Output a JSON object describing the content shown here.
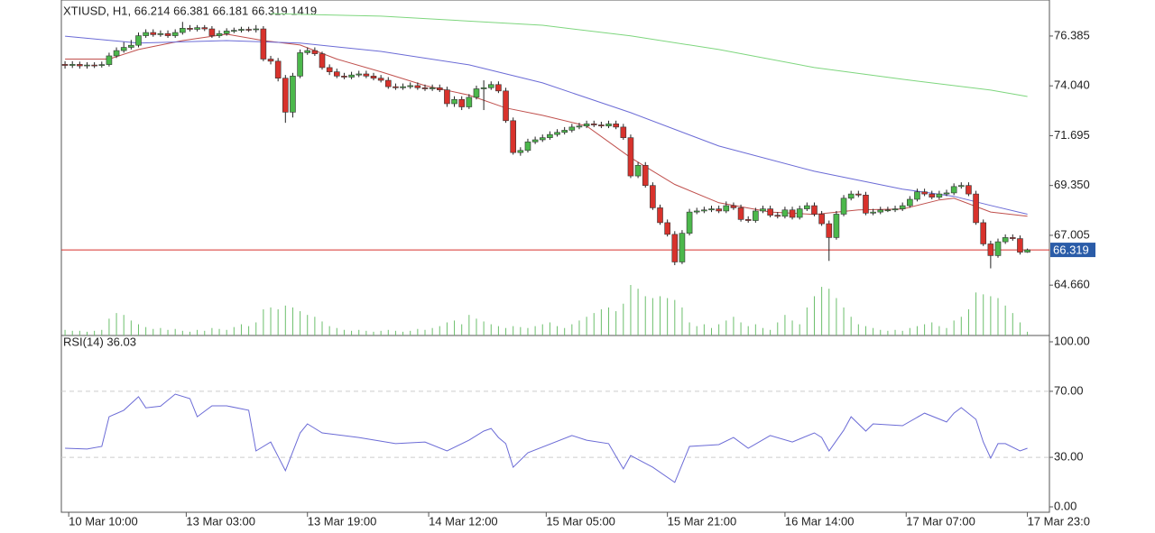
{
  "chart_data": [
    {
      "type": "candlestick",
      "title": "XTIUSD, H1, 66.214 66.381 66.181 66.319 1419",
      "open": [
        75.05,
        75.0,
        75.05,
        74.98,
        75.02,
        75.0,
        75.04,
        75.45,
        75.7,
        75.85,
        75.95,
        76.4,
        76.55,
        76.45,
        76.5,
        76.4,
        76.55,
        76.75,
        76.7,
        76.78,
        76.72,
        76.4,
        76.5,
        76.62,
        76.65,
        76.7,
        76.68,
        76.72,
        75.3,
        75.2,
        74.4,
        72.8,
        74.5,
        75.6,
        75.7,
        75.55,
        74.9,
        74.7,
        74.5,
        74.45,
        74.55,
        74.6,
        74.5,
        74.4,
        74.3,
        74.0,
        73.95,
        74.0,
        74.05,
        73.95,
        73.9,
        73.95,
        73.85,
        73.2,
        73.4,
        73.05,
        73.5,
        73.9,
        73.95,
        74.1,
        73.8,
        72.4,
        70.9,
        71.0,
        71.4,
        71.5,
        71.6,
        71.75,
        71.85,
        71.95,
        72.1,
        72.15,
        72.25,
        72.2,
        72.15,
        72.25,
        72.1,
        71.6,
        69.8,
        70.3,
        69.35,
        68.3,
        67.6,
        67.05,
        65.75,
        67.1,
        68.1,
        68.15,
        68.2,
        68.25,
        68.15,
        68.4,
        68.3,
        67.75,
        67.7,
        68.15,
        68.25,
        67.95,
        67.9,
        68.2,
        67.85,
        68.25,
        68.4,
        68.0,
        67.55,
        66.9,
        68.0,
        68.75,
        68.95,
        68.9,
        68.05,
        68.1,
        68.2,
        68.2,
        68.25,
        68.4,
        68.7,
        69.05,
        68.95,
        68.8,
        68.95,
        69.0,
        69.3,
        69.35,
        68.95,
        67.6,
        66.6,
        66.05,
        66.7,
        66.9,
        66.85,
        66.214
      ],
      "high": [
        75.2,
        75.2,
        75.18,
        75.15,
        75.15,
        75.18,
        75.6,
        75.85,
        76.1,
        76.2,
        76.55,
        76.7,
        76.7,
        76.65,
        76.65,
        76.7,
        77.05,
        76.9,
        76.9,
        76.9,
        76.85,
        76.65,
        76.75,
        76.78,
        76.82,
        76.82,
        76.9,
        76.85,
        75.45,
        75.35,
        74.55,
        74.65,
        75.75,
        75.85,
        75.85,
        75.65,
        75.05,
        74.85,
        74.65,
        74.7,
        74.75,
        74.75,
        74.65,
        74.55,
        74.45,
        74.15,
        74.15,
        74.2,
        74.2,
        74.1,
        74.1,
        74.1,
        74.0,
        73.55,
        73.55,
        73.65,
        74.05,
        74.3,
        74.25,
        74.25,
        73.95,
        72.55,
        71.15,
        71.55,
        71.65,
        71.75,
        71.9,
        72.0,
        72.1,
        72.25,
        72.3,
        72.4,
        72.4,
        72.35,
        72.4,
        72.4,
        72.25,
        71.75,
        70.45,
        70.45,
        69.5,
        68.45,
        67.75,
        67.2,
        67.25,
        68.25,
        68.3,
        68.35,
        68.4,
        68.4,
        68.6,
        68.55,
        68.45,
        67.9,
        68.3,
        68.4,
        68.4,
        68.1,
        68.35,
        68.35,
        68.4,
        68.55,
        68.55,
        68.15,
        67.7,
        68.15,
        68.9,
        69.1,
        69.1,
        69.05,
        68.25,
        68.35,
        68.35,
        68.4,
        68.55,
        68.85,
        69.2,
        69.2,
        69.1,
        69.1,
        69.15,
        69.45,
        69.5,
        69.5,
        69.1,
        67.75,
        66.75,
        66.85,
        67.05,
        67.05,
        67.0,
        66.381
      ],
      "low": [
        74.85,
        74.88,
        74.85,
        74.85,
        74.88,
        74.9,
        74.95,
        75.35,
        75.6,
        75.75,
        75.85,
        76.3,
        76.35,
        76.35,
        76.3,
        76.3,
        76.45,
        76.6,
        76.6,
        76.62,
        76.3,
        76.3,
        76.4,
        76.52,
        76.55,
        76.58,
        76.55,
        75.2,
        75.05,
        74.25,
        72.3,
        72.55,
        74.4,
        75.5,
        75.45,
        74.8,
        74.55,
        74.4,
        74.35,
        74.35,
        74.45,
        74.4,
        74.3,
        74.2,
        73.9,
        73.85,
        73.85,
        73.9,
        73.85,
        73.8,
        73.8,
        73.75,
        73.05,
        73.05,
        72.9,
        72.95,
        73.4,
        72.9,
        73.85,
        73.7,
        72.3,
        70.8,
        70.75,
        70.9,
        71.3,
        71.4,
        71.5,
        71.65,
        71.75,
        71.85,
        72.0,
        72.05,
        72.1,
        72.05,
        72.05,
        72.0,
        71.5,
        69.7,
        69.7,
        69.25,
        68.2,
        67.5,
        66.95,
        65.6,
        65.65,
        67.0,
        68.0,
        68.05,
        68.1,
        68.05,
        68.05,
        68.2,
        67.65,
        67.6,
        67.6,
        68.05,
        67.85,
        67.8,
        67.8,
        67.75,
        67.75,
        68.15,
        67.9,
        67.45,
        65.8,
        66.8,
        67.9,
        68.65,
        68.8,
        67.95,
        67.95,
        68.0,
        68.1,
        68.1,
        68.15,
        68.3,
        68.6,
        68.85,
        68.7,
        68.7,
        68.85,
        68.9,
        69.2,
        68.85,
        67.5,
        66.5,
        65.45,
        65.95,
        66.6,
        66.75,
        66.1,
        66.181
      ],
      "close": [
        75.0,
        75.05,
        74.98,
        75.02,
        75.0,
        75.04,
        75.45,
        75.7,
        75.85,
        75.95,
        76.4,
        76.55,
        76.45,
        76.5,
        76.4,
        76.55,
        76.75,
        76.7,
        76.78,
        76.72,
        76.4,
        76.5,
        76.62,
        76.65,
        76.7,
        76.68,
        76.72,
        75.3,
        75.2,
        74.4,
        72.8,
        74.5,
        75.6,
        75.7,
        75.55,
        74.9,
        74.7,
        74.5,
        74.45,
        74.55,
        74.6,
        74.5,
        74.4,
        74.3,
        74.0,
        73.95,
        74.0,
        74.05,
        73.95,
        73.9,
        73.95,
        73.85,
        73.2,
        73.4,
        73.05,
        73.5,
        73.9,
        73.95,
        74.1,
        73.8,
        72.4,
        70.9,
        71.0,
        71.4,
        71.5,
        71.6,
        71.75,
        71.85,
        71.95,
        72.1,
        72.15,
        72.25,
        72.2,
        72.15,
        72.25,
        72.1,
        71.6,
        69.8,
        70.3,
        69.35,
        68.3,
        67.6,
        67.05,
        65.75,
        67.1,
        68.1,
        68.15,
        68.2,
        68.25,
        68.15,
        68.4,
        68.3,
        67.75,
        67.7,
        68.15,
        68.25,
        67.95,
        67.9,
        68.2,
        67.85,
        68.25,
        68.4,
        68.0,
        67.55,
        66.9,
        68.0,
        68.75,
        68.95,
        68.9,
        68.05,
        68.1,
        68.2,
        68.2,
        68.25,
        68.4,
        68.7,
        69.05,
        68.95,
        68.8,
        68.95,
        69.0,
        69.3,
        69.35,
        68.95,
        67.6,
        66.6,
        66.05,
        66.7,
        66.9,
        66.85,
        66.21,
        66.319
      ],
      "volume": [
        6,
        5,
        5,
        4,
        5,
        6,
        18,
        24,
        22,
        16,
        12,
        9,
        7,
        8,
        6,
        7,
        5,
        4,
        6,
        5,
        8,
        7,
        6,
        9,
        12,
        10,
        14,
        28,
        30,
        28,
        32,
        30,
        26,
        22,
        20,
        15,
        10,
        8,
        6,
        5,
        6,
        5,
        4,
        5,
        6,
        5,
        4,
        5,
        7,
        6,
        8,
        10,
        14,
        16,
        12,
        22,
        18,
        15,
        12,
        10,
        8,
        10,
        9,
        8,
        10,
        12,
        14,
        10,
        8,
        12,
        16,
        20,
        24,
        28,
        30,
        26,
        34,
        54,
        50,
        42,
        40,
        42,
        40,
        38,
        30,
        14,
        10,
        12,
        8,
        12,
        16,
        20,
        14,
        10,
        12,
        8,
        6,
        14,
        22,
        16,
        12,
        30,
        42,
        52,
        50,
        40,
        30,
        20,
        12,
        10,
        8,
        6,
        5,
        6,
        5,
        8,
        10,
        12,
        14,
        10,
        8,
        16,
        20,
        28,
        46,
        44,
        42,
        40,
        32,
        24,
        14,
        4
      ],
      "up_color": "#4cb84c",
      "down_color": "#d8322c",
      "volume_color": "#6cbf6c",
      "moving_averages": [
        {
          "color": "#c0504d",
          "x": [
            0,
            6,
            10,
            16,
            22,
            27,
            32,
            37,
            43,
            49,
            55,
            60,
            65,
            71,
            77,
            83,
            89,
            96,
            102,
            108,
            114,
            119,
            121,
            126,
            131
          ],
          "values": [
            75.3,
            75.3,
            75.75,
            76.17,
            76.47,
            76.17,
            75.96,
            75.3,
            74.7,
            74.05,
            73.6,
            73.0,
            72.65,
            72.15,
            70.66,
            69.4,
            68.54,
            68.1,
            67.99,
            68.2,
            68.24,
            68.67,
            68.75,
            68.1,
            67.9
          ]
        },
        {
          "color": "#6b6bd6",
          "x": [
            0,
            10,
            22,
            32,
            43,
            55,
            65,
            77,
            89,
            102,
            114,
            121,
            126,
            131
          ],
          "values": [
            76.38,
            76.05,
            76.17,
            76.05,
            75.66,
            75.03,
            74.18,
            72.78,
            71.21,
            70.02,
            69.18,
            68.84,
            68.41,
            68.0
          ]
        },
        {
          "color": "#7ed67e",
          "x": [
            28,
            43,
            65,
            77,
            89,
            102,
            114,
            126,
            131
          ],
          "values": [
            77.44,
            77.32,
            76.89,
            76.39,
            75.75,
            74.9,
            74.35,
            73.84,
            73.54
          ]
        }
      ],
      "current_price": 66.319,
      "current_price_color": "#d8322c",
      "price_label_color": "#2a5ca8",
      "xlim": [
        -0.5,
        134
      ],
      "xticks": [
        {
          "value": 0.5,
          "label": "10 Mar 10:00"
        },
        {
          "value": 16.5,
          "label": "13 Mar 03:00"
        },
        {
          "value": 33,
          "label": "13 Mar 19:00"
        },
        {
          "value": 49.5,
          "label": "14 Mar 12:00"
        },
        {
          "value": 65.5,
          "label": "15 Mar 05:00"
        },
        {
          "value": 82,
          "label": "15 Mar 21:00"
        },
        {
          "value": 98,
          "label": "16 Mar 14:00"
        },
        {
          "value": 114.5,
          "label": "17 Mar 07:00"
        },
        {
          "value": 131,
          "label": "17 Mar 23:0"
        }
      ],
      "ylim": [
        62.29,
        78.08
      ],
      "yticks": [
        76.385,
        {
          "value": 74.04,
          "label": "74.040"
        },
        71.695,
        {
          "value": 69.35,
          "label": "69.350"
        },
        67.005,
        {
          "value": 64.66,
          "label": "64.660"
        }
      ]
    },
    {
      "type": "line",
      "title": "RSI(14) 36.03",
      "color": "#6b6bd6",
      "x": [
        0,
        3,
        5,
        6,
        8,
        10,
        11,
        13,
        15,
        17,
        18,
        20,
        22,
        25,
        26,
        28,
        30,
        32,
        33,
        35,
        40,
        45,
        49,
        52,
        55,
        57,
        58,
        59,
        60,
        61,
        63,
        69,
        71,
        74,
        76,
        77,
        80,
        83,
        85,
        89,
        91,
        93,
        96,
        99,
        102,
        103,
        104,
        106,
        107,
        109,
        110,
        114,
        117,
        120,
        121,
        122,
        124,
        125,
        126,
        127,
        128,
        130,
        131
      ],
      "values": [
        35.5,
        35,
        36.6,
        54.6,
        58.5,
        66.7,
        60,
        61,
        68.3,
        65.6,
        54.6,
        61.2,
        61.2,
        58.5,
        33.9,
        39.3,
        21.9,
        44.8,
        50.3,
        44.8,
        42,
        38.3,
        39.3,
        33.9,
        40.4,
        45.9,
        47.5,
        42,
        38.3,
        24,
        32.8,
        43.2,
        40.4,
        38.3,
        23,
        31.1,
        24,
        14.8,
        36.6,
        37.7,
        42,
        35.5,
        43.2,
        39.3,
        44.8,
        42,
        33.9,
        46.4,
        54.6,
        45.9,
        50.3,
        49.2,
        56.8,
        51.4,
        56.8,
        60.1,
        53,
        39.3,
        29.5,
        38.3,
        38.3,
        33.9,
        35.5
      ],
      "xlim": [
        -0.5,
        134
      ],
      "ylim": [
        0,
        100
      ],
      "yticks": [
        {
          "value": 100,
          "label": "100.00"
        },
        {
          "value": 70,
          "label": "70.00"
        },
        {
          "value": 30,
          "label": "30.00"
        },
        {
          "value": 0,
          "label": "0.00"
        }
      ],
      "levels": [
        70,
        30
      ]
    }
  ]
}
